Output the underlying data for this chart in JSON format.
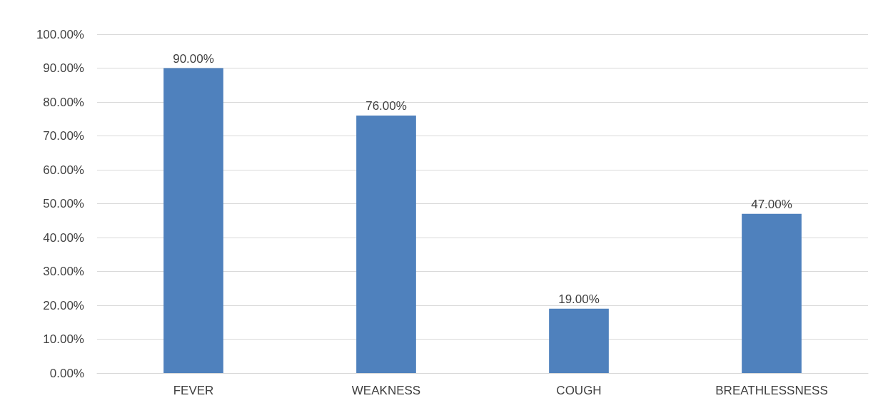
{
  "chart_data": {
    "type": "bar",
    "categories": [
      "FEVER",
      "WEAKNESS",
      "COUGH",
      "BREATHLESSNESS"
    ],
    "values": [
      90,
      76,
      19,
      47
    ],
    "color": "#4f81bd",
    "value_labels": [
      "90.00%",
      "76.00%",
      "19.00%",
      "47.00%"
    ],
    "ylim": [
      0,
      100
    ],
    "yticks": [
      {
        "value": 0,
        "label": "0.00%"
      },
      {
        "value": 10,
        "label": "10.00%"
      },
      {
        "value": 20,
        "label": "20.00%"
      },
      {
        "value": 30,
        "label": "30.00%"
      },
      {
        "value": 40,
        "label": "40.00%"
      },
      {
        "value": 50,
        "label": "50.00%"
      },
      {
        "value": 60,
        "label": "60.00%"
      },
      {
        "value": 70,
        "label": "70.00%"
      },
      {
        "value": 80,
        "label": "80.00%"
      },
      {
        "value": 90,
        "label": "90.00%"
      },
      {
        "value": 100,
        "label": "100.00%"
      }
    ],
    "grid": "y"
  }
}
